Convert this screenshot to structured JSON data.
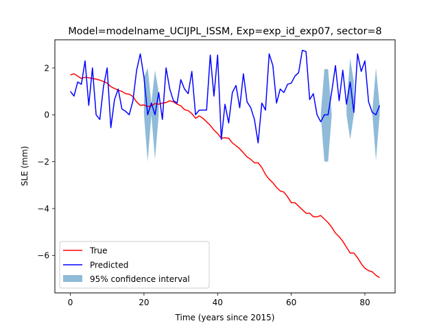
{
  "chart_data": {
    "type": "line",
    "title": "Model=modelname_UCIJPL_ISSM, Exp=exp_id_exp07, sector=8",
    "xlabel": "Time (years since 2015)",
    "ylabel": "SLE (mm)",
    "xlim": [
      -4.2,
      88.2
    ],
    "ylim": [
      -7.6,
      3.2
    ],
    "x_ticks": [
      0,
      20,
      40,
      60,
      80
    ],
    "y_ticks": [
      -6,
      -4,
      -2,
      0,
      2
    ],
    "grid": false,
    "legend": {
      "placement": "lower-left"
    },
    "x": [
      0,
      1,
      2,
      3,
      4,
      5,
      6,
      7,
      8,
      9,
      10,
      11,
      12,
      13,
      14,
      15,
      16,
      17,
      18,
      19,
      20,
      21,
      22,
      23,
      24,
      25,
      26,
      27,
      28,
      29,
      30,
      31,
      32,
      33,
      34,
      35,
      36,
      37,
      38,
      39,
      40,
      41,
      42,
      43,
      44,
      45,
      46,
      47,
      48,
      49,
      50,
      51,
      52,
      53,
      54,
      55,
      56,
      57,
      58,
      59,
      60,
      61,
      62,
      63,
      64,
      65,
      66,
      67,
      68,
      69,
      70,
      71,
      72,
      73,
      74,
      75,
      76,
      77,
      78,
      79,
      80,
      81,
      82,
      83,
      84
    ],
    "series": [
      {
        "name": "True",
        "color": "#ff0000",
        "values": [
          1.7,
          1.75,
          1.65,
          1.55,
          1.6,
          1.58,
          1.55,
          1.52,
          1.48,
          1.42,
          1.35,
          1.2,
          1.12,
          1.05,
          1.0,
          0.9,
          0.88,
          0.78,
          0.55,
          0.4,
          0.42,
          0.35,
          0.38,
          0.48,
          0.45,
          0.5,
          0.52,
          0.6,
          0.55,
          0.45,
          0.38,
          0.22,
          0.18,
          0.05,
          -0.15,
          -0.05,
          -0.15,
          -0.3,
          -0.45,
          -0.65,
          -0.8,
          -1.0,
          -0.98,
          -1.0,
          -1.2,
          -1.32,
          -1.45,
          -1.62,
          -1.8,
          -1.9,
          -2.05,
          -2.05,
          -2.25,
          -2.55,
          -2.75,
          -2.9,
          -3.1,
          -3.25,
          -3.3,
          -3.5,
          -3.75,
          -3.75,
          -3.9,
          -4.05,
          -4.2,
          -4.2,
          -4.35,
          -4.35,
          -4.3,
          -4.45,
          -4.6,
          -4.8,
          -5.05,
          -5.2,
          -5.4,
          -5.65,
          -5.9,
          -5.9,
          -6.1,
          -6.35,
          -6.55,
          -6.65,
          -6.7,
          -6.85,
          -6.95
        ]
      },
      {
        "name": "Predicted",
        "color": "#0000ff",
        "values": [
          1.0,
          0.8,
          1.4,
          1.3,
          2.3,
          0.4,
          2.0,
          0.0,
          -0.2,
          1.2,
          2.0,
          -0.55,
          0.65,
          1.1,
          0.25,
          0.15,
          0.0,
          0.6,
          1.9,
          2.6,
          1.6,
          0.0,
          0.5,
          0.0,
          0.95,
          -0.2,
          2.0,
          1.1,
          0.6,
          0.5,
          1.5,
          1.1,
          0.9,
          1.85,
          0.0,
          0.2,
          0.2,
          0.2,
          2.55,
          0.8,
          2.55,
          -1.05,
          0.45,
          -0.35,
          0.95,
          1.25,
          0.3,
          1.75,
          0.55,
          0.3,
          -0.2,
          -1.2,
          0.5,
          0.2,
          2.6,
          2.1,
          0.5,
          1.1,
          0.95,
          1.3,
          1.35,
          1.65,
          1.8,
          2.75,
          2.7,
          0.65,
          0.9,
          0.0,
          -0.3,
          0.0,
          0.0,
          1.0,
          2.1,
          0.6,
          1.9,
          0.45,
          1.4,
          0.1,
          2.6,
          1.85,
          2.3,
          0.55,
          0.1,
          0.0,
          0.4
        ]
      },
      {
        "name": "95% confidence interval",
        "type": "area",
        "color": "#1f77b4",
        "opacity": 0.5,
        "bands": [
          {
            "x": [
              20,
              21,
              22
            ],
            "lower": [
              0.0,
              -2.0,
              0.0
            ],
            "upper": [
              1.6,
              2.0,
              0.5
            ]
          },
          {
            "x": [
              22,
              23,
              24
            ],
            "lower": [
              0.0,
              -1.9,
              0.0
            ],
            "upper": [
              0.5,
              1.9,
              0.95
            ]
          },
          {
            "x": [
              68,
              69,
              70,
              71
            ],
            "lower": [
              0.0,
              -2.0,
              -2.0,
              0.0
            ],
            "upper": [
              0.0,
              1.95,
              1.95,
              0.0
            ]
          },
          {
            "x": [
              75,
              76,
              77
            ],
            "lower": [
              0.0,
              -1.05,
              0.0
            ],
            "upper": [
              0.45,
              2.4,
              1.4
            ]
          },
          {
            "x": [
              82,
              83,
              84
            ],
            "lower": [
              0.1,
              -1.95,
              0.0
            ],
            "upper": [
              0.1,
              2.0,
              0.4
            ]
          }
        ]
      }
    ]
  }
}
